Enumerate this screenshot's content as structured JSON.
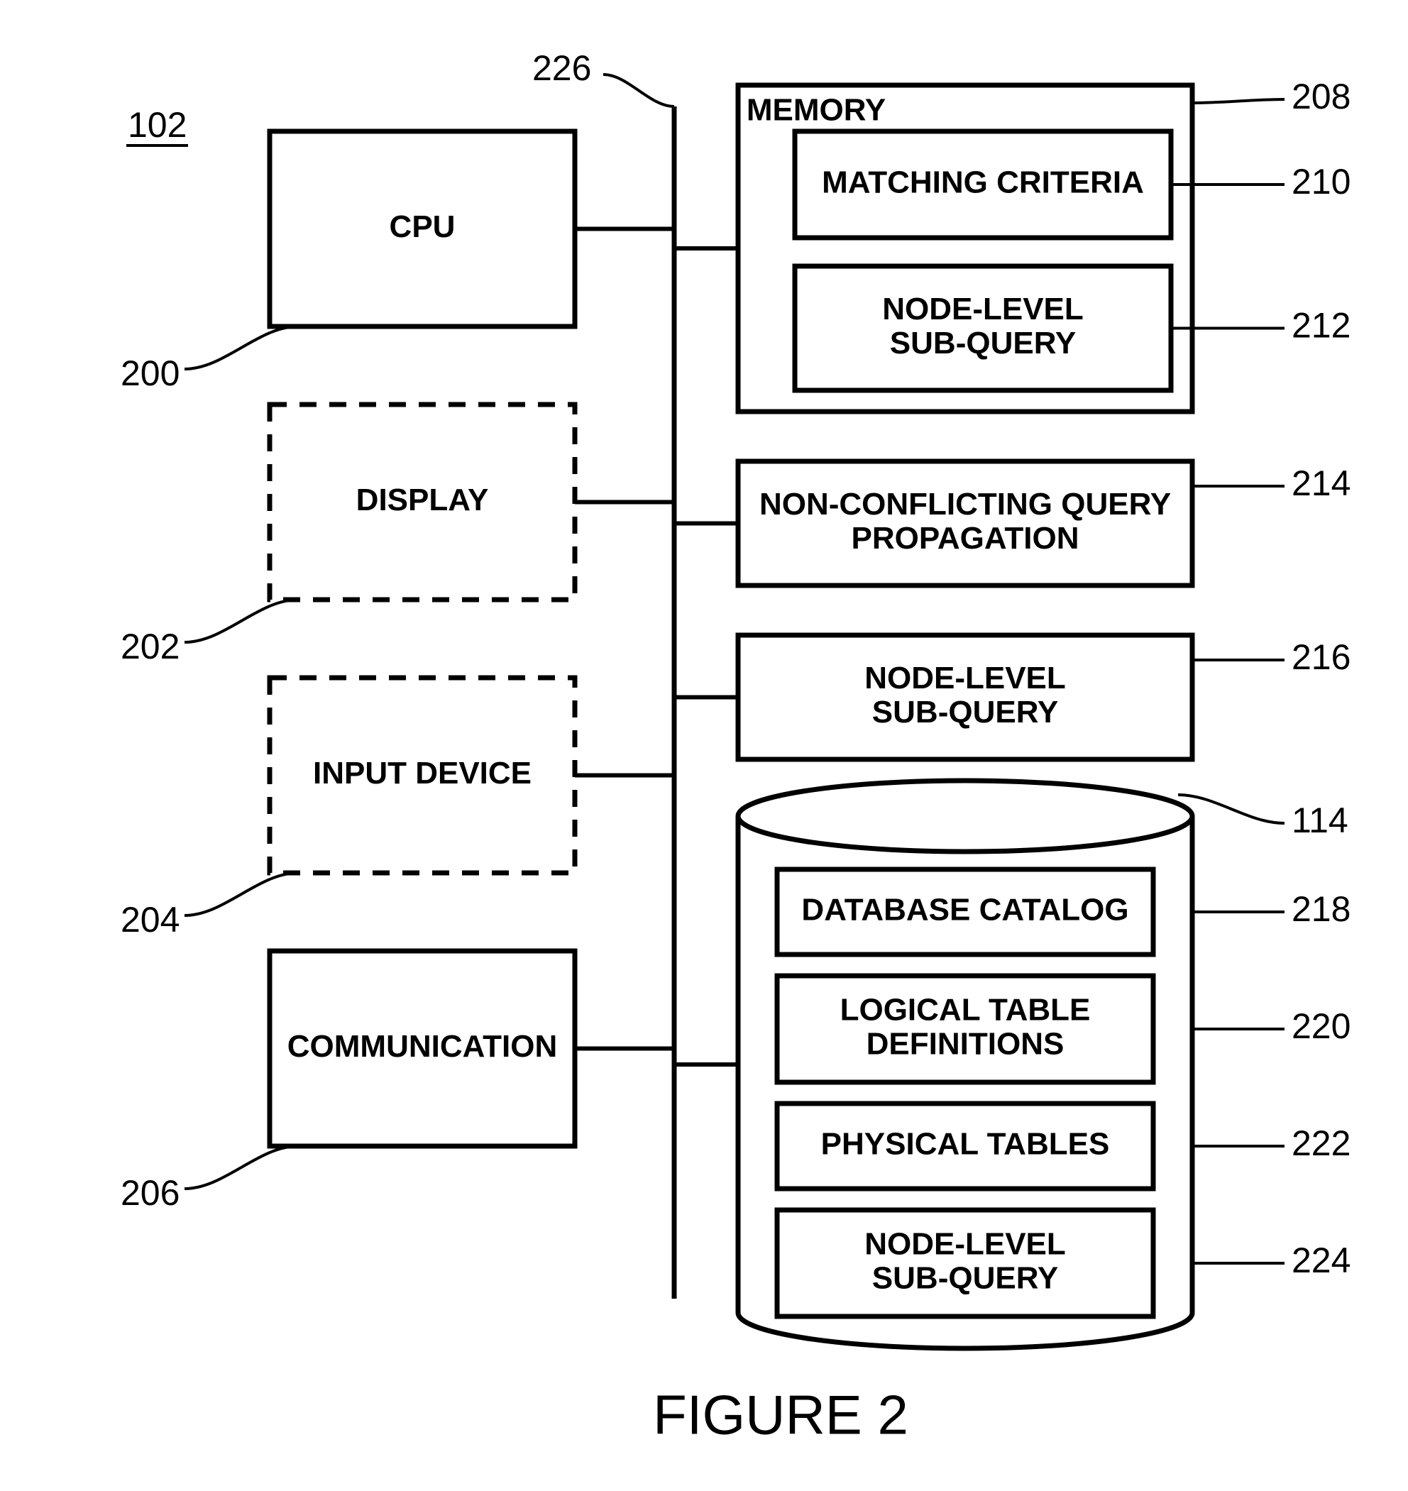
{
  "figure": {
    "caption": "FIGURE 2",
    "system_ref": "102",
    "bus_ref": "226",
    "stroke_color": "#000000",
    "stroke_width_thick": 7,
    "stroke_width_thin": 6,
    "stroke_width_leader": 4,
    "dash_pattern": "24 18",
    "font_size_box": 44,
    "font_size_ref": 50,
    "font_size_caption": 78,
    "font_family": "Arial, Helvetica, sans-serif",
    "left_blocks": {
      "cpu": {
        "label": "CPU",
        "ref": "200",
        "dashed": false
      },
      "display": {
        "label": "DISPLAY",
        "ref": "202",
        "dashed": true
      },
      "input_device": {
        "label": "INPUT DEVICE",
        "ref": "204",
        "dashed": true
      },
      "communication": {
        "label": "COMMUNICATION",
        "ref": "206",
        "dashed": false
      }
    },
    "memory": {
      "label": "MEMORY",
      "ref": "208",
      "children": {
        "matching_criteria": {
          "label": "MATCHING CRITERIA",
          "ref": "210"
        },
        "node_level_subquery": {
          "label_l1": "NODE-LEVEL",
          "label_l2": "SUB-QUERY",
          "ref": "212"
        }
      }
    },
    "middle_blocks": {
      "nonconflicting": {
        "label_l1": "NON-CONFLICTING QUERY",
        "label_l2": "PROPAGATION",
        "ref": "214"
      },
      "node_level_subquery": {
        "label_l1": "NODE-LEVEL",
        "label_l2": "SUB-QUERY",
        "ref": "216"
      }
    },
    "database": {
      "ref": "114",
      "children": {
        "catalog": {
          "label": "DATABASE CATALOG",
          "ref": "218"
        },
        "logical": {
          "label_l1": "LOGICAL TABLE",
          "label_l2": "DEFINITIONS",
          "ref": "220"
        },
        "physical": {
          "label": "PHYSICAL TABLES",
          "ref": "222"
        },
        "nlsubquery": {
          "label_l1": "NODE-LEVEL",
          "label_l2": "SUB-QUERY",
          "ref": "224"
        }
      }
    }
  }
}
